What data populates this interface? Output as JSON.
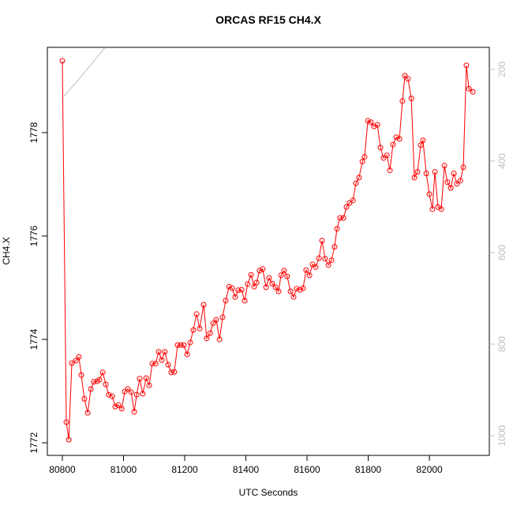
{
  "chart_data": {
    "type": "line",
    "title": "ORCAS RF15 CH4.X",
    "xlabel": "UTC Seconds",
    "ylabel": "CH4.X",
    "x": [
      80800,
      80813,
      80821,
      80831,
      80844,
      80854,
      80862,
      80872,
      80883,
      80893,
      80903,
      80914,
      80921,
      80932,
      80942,
      80952,
      80963,
      80973,
      80983,
      80994,
      81004,
      81014,
      81025,
      81035,
      81043,
      81053,
      81063,
      81074,
      81084,
      81094,
      81105,
      81115,
      81125,
      81135,
      81146,
      81156,
      81166,
      81177,
      81187,
      81197,
      81208,
      81218,
      81228,
      81239,
      81249,
      81262,
      81272,
      81283,
      81293,
      81303,
      81314,
      81324,
      81334,
      81345,
      81355,
      81365,
      81375,
      81386,
      81396,
      81406,
      81417,
      81427,
      81435,
      81445,
      81455,
      81466,
      81476,
      81486,
      81497,
      81507,
      81515,
      81525,
      81535,
      81546,
      81556,
      81566,
      81577,
      81587,
      81597,
      81608,
      81618,
      81628,
      81639,
      81649,
      81659,
      81670,
      81680,
      81690,
      81698,
      81708,
      81719,
      81729,
      81739,
      81750,
      81760,
      81770,
      81781,
      81788,
      81799,
      81809,
      81819,
      81830,
      81840,
      81850,
      81861,
      81871,
      81881,
      81892,
      81902,
      81912,
      81920,
      81930,
      81941,
      81951,
      81961,
      81972,
      81979,
      81990,
      82000,
      82010,
      82018,
      82028,
      82039,
      82049,
      82059,
      82070,
      82080,
      82090,
      82101,
      82111,
      82121,
      82129,
      82142
    ],
    "series": [
      {
        "color": "#ff0000",
        "values": [
          1779.39,
          1772.4,
          1772.06,
          1773.54,
          1773.59,
          1773.66,
          1773.31,
          1772.85,
          1772.58,
          1773.04,
          1773.18,
          1773.19,
          1773.22,
          1773.36,
          1773.13,
          1772.93,
          1772.9,
          1772.7,
          1772.73,
          1772.66,
          1772.99,
          1773.04,
          1772.98,
          1772.6,
          1772.93,
          1773.24,
          1772.95,
          1773.25,
          1773.11,
          1773.53,
          1773.53,
          1773.76,
          1773.6,
          1773.76,
          1773.51,
          1773.36,
          1773.37,
          1773.89,
          1773.89,
          1773.89,
          1773.71,
          1773.94,
          1774.18,
          1774.49,
          1774.21,
          1774.67,
          1774.02,
          1774.12,
          1774.31,
          1774.38,
          1774.0,
          1774.43,
          1774.75,
          1775.02,
          1774.99,
          1774.82,
          1774.95,
          1774.96,
          1774.75,
          1775.07,
          1775.25,
          1775.02,
          1775.1,
          1775.33,
          1775.36,
          1775.01,
          1775.19,
          1775.08,
          1775.01,
          1774.93,
          1775.24,
          1775.33,
          1775.22,
          1774.93,
          1774.82,
          1774.98,
          1774.96,
          1774.99,
          1775.34,
          1775.24,
          1775.45,
          1775.4,
          1775.57,
          1775.91,
          1775.56,
          1775.44,
          1775.53,
          1775.79,
          1776.14,
          1776.35,
          1776.35,
          1776.56,
          1776.64,
          1776.69,
          1777.02,
          1777.13,
          1777.44,
          1777.53,
          1778.23,
          1778.2,
          1778.12,
          1778.15,
          1777.71,
          1777.51,
          1777.56,
          1777.27,
          1777.77,
          1777.91,
          1777.88,
          1778.61,
          1779.1,
          1779.04,
          1778.66,
          1777.13,
          1777.24,
          1777.76,
          1777.85,
          1777.21,
          1776.81,
          1776.52,
          1777.24,
          1776.56,
          1776.52,
          1777.36,
          1777.04,
          1776.93,
          1777.21,
          1777.01,
          1777.07,
          1777.33,
          1779.3,
          1778.85,
          1778.79
        ]
      },
      {
        "color": "#bebebe",
        "axis": "y2",
        "x": [
          80805,
          80846,
          80940
        ],
        "values": [
          258.6,
          227.6,
          152
        ]
      }
    ],
    "xlim": [
      80751,
      82196
    ],
    "xticks": [
      80800,
      81000,
      81200,
      81400,
      81600,
      81800,
      82000
    ],
    "ylim": [
      1771.756,
      1779.649
    ],
    "yticks": [
      1772,
      1774,
      1776,
      1778
    ],
    "y2lim": [
      151.7,
      1043
    ],
    "y2ticks": [
      200,
      400,
      600,
      800,
      1000
    ],
    "y2_inverted": true
  }
}
